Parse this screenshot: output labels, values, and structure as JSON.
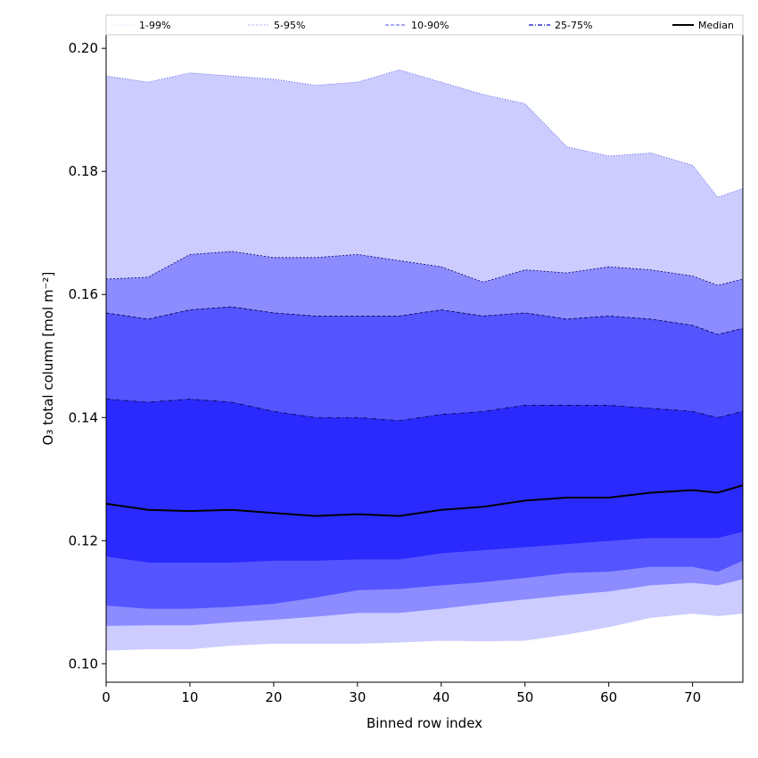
{
  "chart_data": {
    "type": "area",
    "xlabel": "Binned row index",
    "ylabel": "O₃ total column [mol m⁻²]",
    "xlim": [
      0,
      76
    ],
    "ylim": [
      0.097,
      0.2022
    ],
    "xticks": [
      0,
      10,
      20,
      30,
      40,
      50,
      60,
      70
    ],
    "yticks": [
      0.1,
      0.12,
      0.14,
      0.16,
      0.18,
      0.2
    ],
    "grid": false,
    "legend_position": "top",
    "legend": [
      {
        "label": "1-99%",
        "style": "dotted-thin",
        "color": "#ccccff"
      },
      {
        "label": "5-95%",
        "style": "dotted",
        "color": "#8888ee"
      },
      {
        "label": "10-90%",
        "style": "dashed",
        "color": "#7777ee"
      },
      {
        "label": "25-75%",
        "style": "dashdot",
        "color": "#3333cc"
      },
      {
        "label": "Median",
        "style": "solid",
        "color": "#000000"
      }
    ],
    "bands": [
      {
        "name": "1-99%",
        "fill": "#ccccff",
        "edge": "#4444dd",
        "x": [
          0,
          5,
          10,
          15,
          20,
          25,
          30,
          35,
          40,
          45,
          50,
          55,
          60,
          65,
          70,
          73,
          76
        ],
        "upper": [
          0.1955,
          0.1945,
          0.196,
          0.1955,
          0.195,
          0.194,
          0.1945,
          0.1965,
          0.1945,
          0.1925,
          0.191,
          0.184,
          0.1825,
          0.183,
          0.181,
          0.1758,
          0.1772
        ],
        "lower": [
          0.1022,
          0.1024,
          0.1024,
          0.103,
          0.1033,
          0.1033,
          0.1033,
          0.1035,
          0.1038,
          0.1037,
          0.1038,
          0.1048,
          0.106,
          0.1075,
          0.1082,
          0.1078,
          0.1082
        ]
      },
      {
        "name": "5-95%",
        "fill": "#8c8cff",
        "edge": "#000066",
        "x": [
          0,
          5,
          10,
          15,
          20,
          25,
          30,
          35,
          40,
          45,
          50,
          55,
          60,
          65,
          70,
          73,
          76
        ],
        "upper": [
          0.1625,
          0.1628,
          0.1665,
          0.167,
          0.166,
          0.166,
          0.1665,
          0.1655,
          0.1645,
          0.162,
          0.164,
          0.1635,
          0.1645,
          0.164,
          0.163,
          0.1615,
          0.1625
        ],
        "lower": [
          0.1062,
          0.1063,
          0.1063,
          0.1068,
          0.1072,
          0.1077,
          0.1083,
          0.1083,
          0.109,
          0.1098,
          0.1105,
          0.1112,
          0.1118,
          0.1128,
          0.1132,
          0.1128,
          0.1138
        ]
      },
      {
        "name": "10-90%",
        "fill": "#5555ff",
        "edge": "#000055",
        "x": [
          0,
          5,
          10,
          15,
          20,
          25,
          30,
          35,
          40,
          45,
          50,
          55,
          60,
          65,
          70,
          73,
          76
        ],
        "upper": [
          0.157,
          0.156,
          0.1575,
          0.158,
          0.157,
          0.1565,
          0.1565,
          0.1565,
          0.1575,
          0.1565,
          0.157,
          0.156,
          0.1565,
          0.156,
          0.155,
          0.1535,
          0.1545
        ],
        "lower": [
          0.1095,
          0.109,
          0.109,
          0.1093,
          0.1098,
          0.1108,
          0.112,
          0.1122,
          0.1128,
          0.1133,
          0.114,
          0.1148,
          0.115,
          0.1158,
          0.1158,
          0.115,
          0.1168
        ]
      },
      {
        "name": "25-75%",
        "fill": "#2a2aff",
        "edge": "#000044",
        "x": [
          0,
          5,
          10,
          15,
          20,
          25,
          30,
          35,
          40,
          45,
          50,
          55,
          60,
          65,
          70,
          73,
          76
        ],
        "upper": [
          0.143,
          0.1425,
          0.143,
          0.1425,
          0.141,
          0.14,
          0.14,
          0.1395,
          0.1405,
          0.141,
          0.142,
          0.142,
          0.142,
          0.1415,
          0.141,
          0.14,
          0.141
        ],
        "lower": [
          0.1175,
          0.1165,
          0.1165,
          0.1165,
          0.1168,
          0.1168,
          0.117,
          0.117,
          0.118,
          0.1185,
          0.119,
          0.1195,
          0.12,
          0.1205,
          0.1205,
          0.1205,
          0.1215
        ]
      }
    ],
    "series": [
      {
        "name": "Median",
        "color": "#000000",
        "x": [
          0,
          5,
          10,
          15,
          20,
          25,
          30,
          35,
          40,
          45,
          50,
          55,
          60,
          65,
          70,
          73,
          76
        ],
        "values": [
          0.126,
          0.125,
          0.1248,
          0.125,
          0.1245,
          0.124,
          0.1243,
          0.124,
          0.125,
          0.1255,
          0.1265,
          0.127,
          0.127,
          0.1278,
          0.1282,
          0.1278,
          0.129
        ]
      }
    ]
  }
}
